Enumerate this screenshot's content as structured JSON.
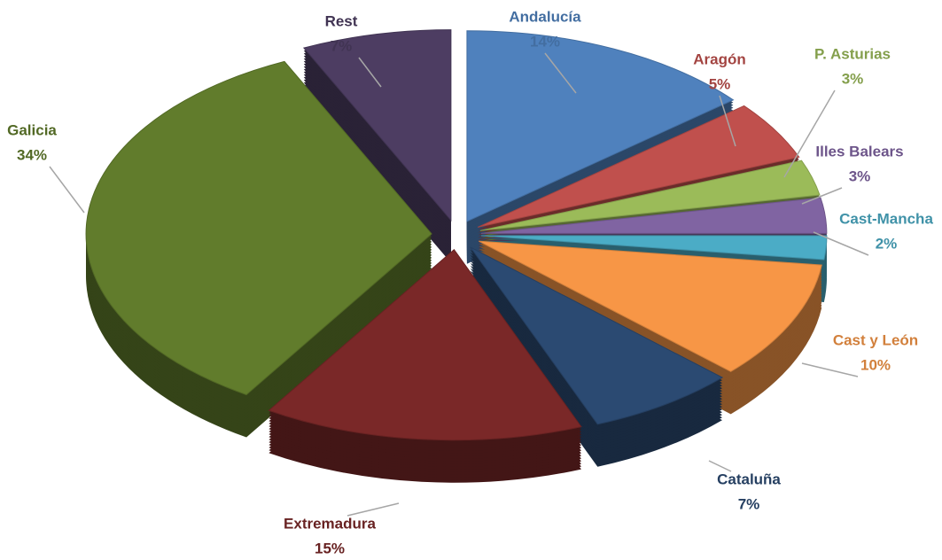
{
  "chart_data": {
    "type": "pie",
    "categories": [
      "Andalucía",
      "Aragón",
      "P. Asturias",
      "Illes Balears",
      "Cast-Mancha",
      "Cast y León",
      "Cataluña",
      "Extremadura",
      "Galicia",
      "Rest"
    ],
    "values": [
      14,
      5,
      3,
      3,
      2,
      10,
      7,
      15,
      34,
      7
    ],
    "value_labels": [
      "14%",
      "5%",
      "3%",
      "3%",
      "2%",
      "10%",
      "7%",
      "15%",
      "34%",
      "7%"
    ],
    "colors": [
      "#4f81bd",
      "#c0504d",
      "#9bbb59",
      "#8064a2",
      "#4bacc6",
      "#f79646",
      "#2b4a72",
      "#7a2828",
      "#617c2c",
      "#4d3d62"
    ]
  }
}
